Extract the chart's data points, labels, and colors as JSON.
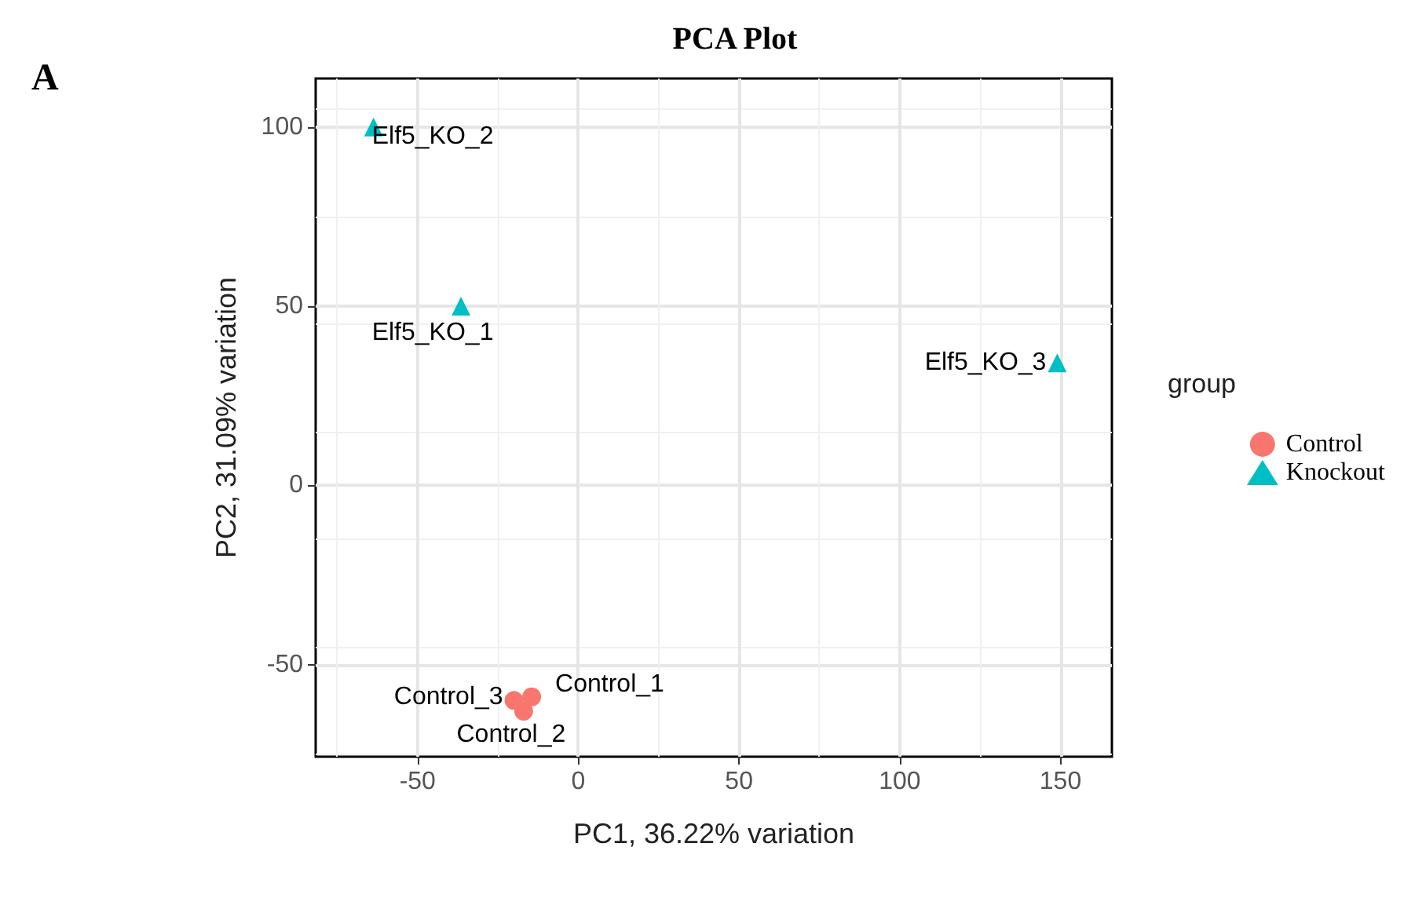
{
  "chart_data": {
    "type": "scatter",
    "title": "PCA Plot",
    "xlabel": "PC1, 36.22% variation",
    "ylabel": "PC2, 31.09% variation",
    "legend_title": "group",
    "series": [
      {
        "name": "Control",
        "color": "#f8766d",
        "marker": "circle",
        "x": [
          -14.5,
          -17,
          -20
        ],
        "values": [
          -59,
          -63,
          -60
        ]
      },
      {
        "name": "Knockout",
        "color": "#00bfc4",
        "marker": "triangle",
        "x": [
          -36.5,
          -63.7,
          149
        ],
        "values": [
          50,
          100,
          34.2
        ]
      }
    ],
    "annotations": [
      "A",
      {
        "text": "Control_1",
        "x": -14.5,
        "y": -59
      },
      {
        "text": "Control_2",
        "x": -17,
        "y": -63
      },
      {
        "text": "Control_3",
        "x": -20,
        "y": -60
      },
      {
        "text": "Elf5_KO_1",
        "x": -36.5,
        "y": 50
      },
      {
        "text": "Elf5_KO_2",
        "x": -63.7,
        "y": 100
      },
      {
        "text": "Elf5_KO_3",
        "x": 149,
        "y": 34.2
      }
    ],
    "xlim": [
      -81.7,
      166
    ],
    "xticks": [
      -50,
      0,
      50,
      100,
      150
    ],
    "ylim": [
      -75.7,
      113.5
    ],
    "yticks": [
      -50,
      0,
      50,
      100
    ],
    "grid": true,
    "legend": "right"
  }
}
